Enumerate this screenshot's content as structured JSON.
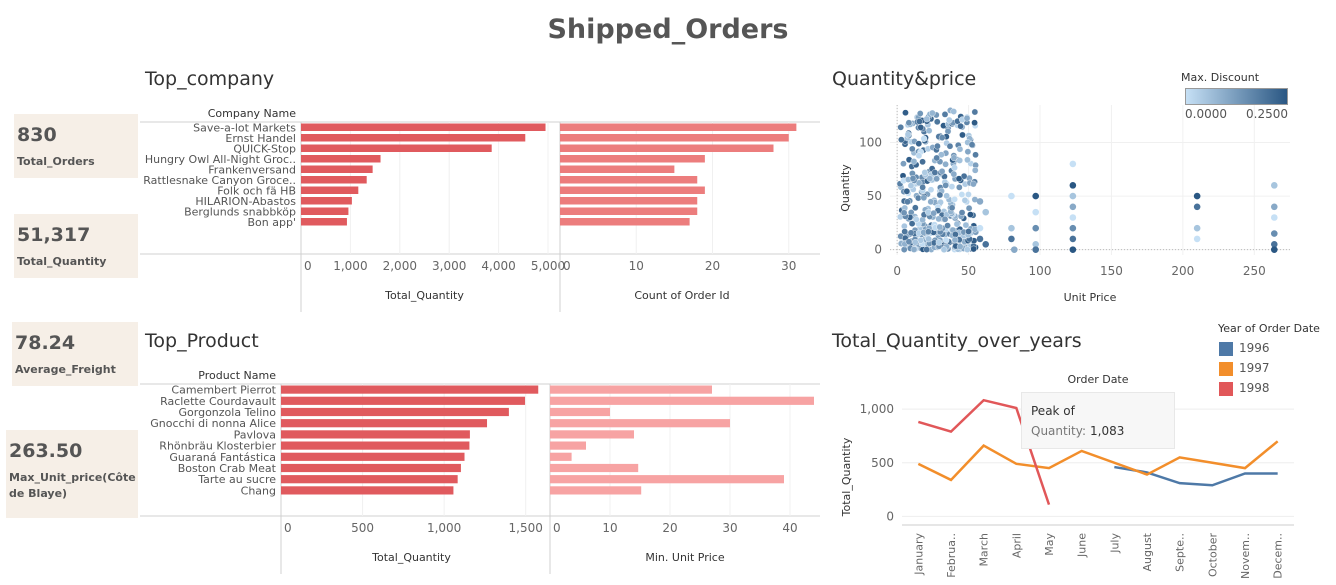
{
  "dashboard": {
    "title": "Shipped_Orders"
  },
  "kpis": [
    {
      "value": "830",
      "label": "Total_Orders"
    },
    {
      "value": "51,317",
      "label": "Total_Quantity"
    },
    {
      "value": "78.24",
      "label": "Average_Freight"
    },
    {
      "value": "263.50",
      "label": "Max_Unit_price(Côte de Blaye)"
    }
  ],
  "sections": {
    "top_company": "Top_company",
    "top_product": "Top_Product",
    "qty_price": "Quantity&price",
    "qty_years": "Total_Quantity_over_years"
  },
  "scatter_legend": {
    "title": "Max. Discount",
    "min": "0.0000",
    "max": "0.2500",
    "color_low": "#c6e0f5",
    "color_high": "#2a5783"
  },
  "line_legend": {
    "title": "Year of Order Date",
    "items": [
      {
        "label": "1996",
        "color": "#4e79a7"
      },
      {
        "label": "1997",
        "color": "#f28e2b"
      },
      {
        "label": "1998",
        "color": "#e15759"
      }
    ]
  },
  "tooltip": {
    "title": "Peak of",
    "label": "Quantity:",
    "value": "1,083"
  },
  "chart_data": [
    {
      "type": "bar",
      "row_header": "Company Name",
      "categories": [
        "Save-a-lot Markets",
        "Ernst Handel",
        "QUICK-Stop",
        "Hungry Owl All-Night Groc..",
        "Frankenversand",
        "Rattlesnake Canyon Groce..",
        "Folk och fä HB",
        "HILARION-Abastos",
        "Berglunds snabbköp",
        "Bon app'"
      ],
      "panels": [
        {
          "xlabel": "Total_Quantity",
          "values": [
            4950,
            4540,
            3860,
            1610,
            1450,
            1330,
            1160,
            1030,
            960,
            930
          ],
          "xlim": [
            0,
            5000
          ],
          "ticks": [
            "0",
            "1,000",
            "2,000",
            "3,000",
            "4,000",
            "5,000"
          ],
          "tick_values": [
            0,
            1000,
            2000,
            3000,
            4000,
            5000
          ],
          "color": "#e05a5e"
        },
        {
          "xlabel": "Count of Order Id",
          "values": [
            31,
            30,
            28,
            19,
            15,
            18,
            19,
            18,
            18,
            17
          ],
          "xlim": [
            0,
            32
          ],
          "ticks": [
            "0",
            "10",
            "20",
            "30"
          ],
          "tick_values": [
            0,
            10,
            20,
            30
          ],
          "color": "#ec7d7d"
        }
      ]
    },
    {
      "type": "bar",
      "row_header": "Product Name",
      "categories": [
        "Camembert Pierrot",
        "Raclette Courdavault",
        "Gorgonzola Telino",
        "Gnocchi di nonna Alice",
        "Pavlova",
        "Rhönbräu Klosterbier",
        "Guaraná Fantástica",
        "Boston Crab Meat",
        "Tarte au sucre",
        "Chang"
      ],
      "panels": [
        {
          "xlabel": "Total_Quantity",
          "values": [
            1577,
            1496,
            1397,
            1263,
            1158,
            1155,
            1125,
            1103,
            1083,
            1057
          ],
          "xlim": [
            0,
            1600
          ],
          "ticks": [
            "0",
            "500",
            "1,000",
            "1,500"
          ],
          "tick_values": [
            0,
            500,
            1000,
            1500
          ],
          "color": "#e05a5e"
        },
        {
          "xlabel": "Min. Unit Price",
          "values": [
            27,
            44,
            10,
            30,
            14,
            6,
            3.6,
            14.7,
            39,
            15.2
          ],
          "xlim": [
            0,
            45
          ],
          "ticks": [
            "0",
            "10",
            "20",
            "30",
            "40"
          ],
          "tick_values": [
            0,
            10,
            20,
            30,
            40
          ],
          "color": "#f7a3a3"
        }
      ]
    },
    {
      "type": "scatter",
      "xlabel": "Unit Price",
      "ylabel": "Quantity",
      "xlim": [
        -5,
        275
      ],
      "ylim": [
        -5,
        135
      ],
      "xticks": [
        0,
        50,
        100,
        150,
        200,
        250
      ],
      "yticks": [
        0,
        50,
        100
      ],
      "color_by": "Max. Discount",
      "points": [
        [
          58,
          20,
          0
        ],
        [
          58,
          45,
          0.1
        ],
        [
          58,
          10,
          0.2
        ],
        [
          62,
          35,
          0.05
        ],
        [
          62,
          5,
          0.2
        ],
        [
          80,
          50,
          0
        ],
        [
          80,
          20,
          0.05
        ],
        [
          80,
          10,
          0.2
        ],
        [
          82,
          0,
          0.1
        ],
        [
          97,
          50,
          0.25
        ],
        [
          97,
          20,
          0.15
        ],
        [
          97,
          35,
          0
        ],
        [
          97,
          5,
          0.05
        ],
        [
          97,
          0,
          0.2
        ],
        [
          123,
          80,
          0
        ],
        [
          123,
          60,
          0.25
        ],
        [
          123,
          50,
          0.05
        ],
        [
          123,
          40,
          0.1
        ],
        [
          123,
          30,
          0
        ],
        [
          123,
          20,
          0.15
        ],
        [
          123,
          10,
          0.2
        ],
        [
          123,
          0,
          0.25
        ],
        [
          210,
          50,
          0.25
        ],
        [
          210,
          40,
          0.2
        ],
        [
          210,
          20,
          0.05
        ],
        [
          210,
          10,
          0
        ],
        [
          264,
          60,
          0.05
        ],
        [
          264,
          40,
          0.1
        ],
        [
          264,
          30,
          0
        ],
        [
          264,
          15,
          0.15
        ],
        [
          264,
          5,
          0.2
        ],
        [
          264,
          0,
          0.25
        ]
      ]
    },
    {
      "type": "line",
      "title": "Order Date",
      "ylabel": "Total_Quantity",
      "categories": [
        "January",
        "Februa..",
        "March",
        "April",
        "May",
        "June",
        "July",
        "August",
        "Septe..",
        "October",
        "Novem..",
        "Decem.."
      ],
      "ylim": [
        -80,
        1150
      ],
      "yticks": [
        "0",
        "500",
        "1,000"
      ],
      "ytick_values": [
        0,
        500,
        1000
      ],
      "series": [
        {
          "name": "1996",
          "color": "#4e79a7",
          "values": [
            null,
            null,
            null,
            null,
            null,
            null,
            460,
            410,
            310,
            290,
            400,
            400
          ]
        },
        {
          "name": "1997",
          "color": "#f28e2b",
          "values": [
            490,
            340,
            660,
            490,
            450,
            610,
            null,
            390,
            550,
            500,
            450,
            700
          ]
        },
        {
          "name": "1998",
          "color": "#e15759",
          "values": [
            880,
            790,
            1083,
            1010,
            110,
            null,
            null,
            null,
            null,
            null,
            null,
            null
          ]
        }
      ]
    }
  ]
}
